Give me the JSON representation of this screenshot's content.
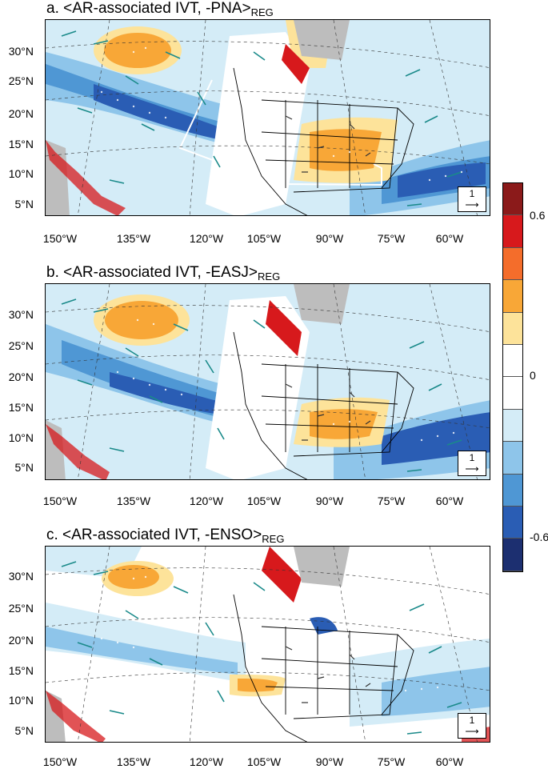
{
  "panels": [
    {
      "title_main": "a. <AR-associated IVT, -PNA>",
      "title_sub": "REG"
    },
    {
      "title_main": "b. <AR-associated IVT, -EASJ>",
      "title_sub": "REG"
    },
    {
      "title_main": "c. <AR-associated IVT, -ENSO>",
      "title_sub": "REG"
    }
  ],
  "lat_labels": [
    "30°N",
    "25°N",
    "20°N",
    "15°N",
    "10°N",
    "5°N"
  ],
  "lon_labels": [
    "150°W",
    "135°W",
    "120°W",
    "105°W",
    "90°W",
    "75°W",
    "60°W"
  ],
  "reference_vector": "1",
  "colorbar": {
    "labels": [
      "0.6",
      "0",
      "-0.6"
    ],
    "colors": [
      "#8b1a1a",
      "#d7191c",
      "#f46d2b",
      "#f8a737",
      "#fde39a",
      "#ffffff",
      "#ffffff",
      "#d4ecf7",
      "#8ec5ea",
      "#4f97d4",
      "#2a5db4",
      "#1c2f70"
    ]
  },
  "colors": {
    "land": "#bdbdbd",
    "vector_teal": "#1a8a8a",
    "vector_dark": "#333333",
    "box": "#ffffff"
  }
}
